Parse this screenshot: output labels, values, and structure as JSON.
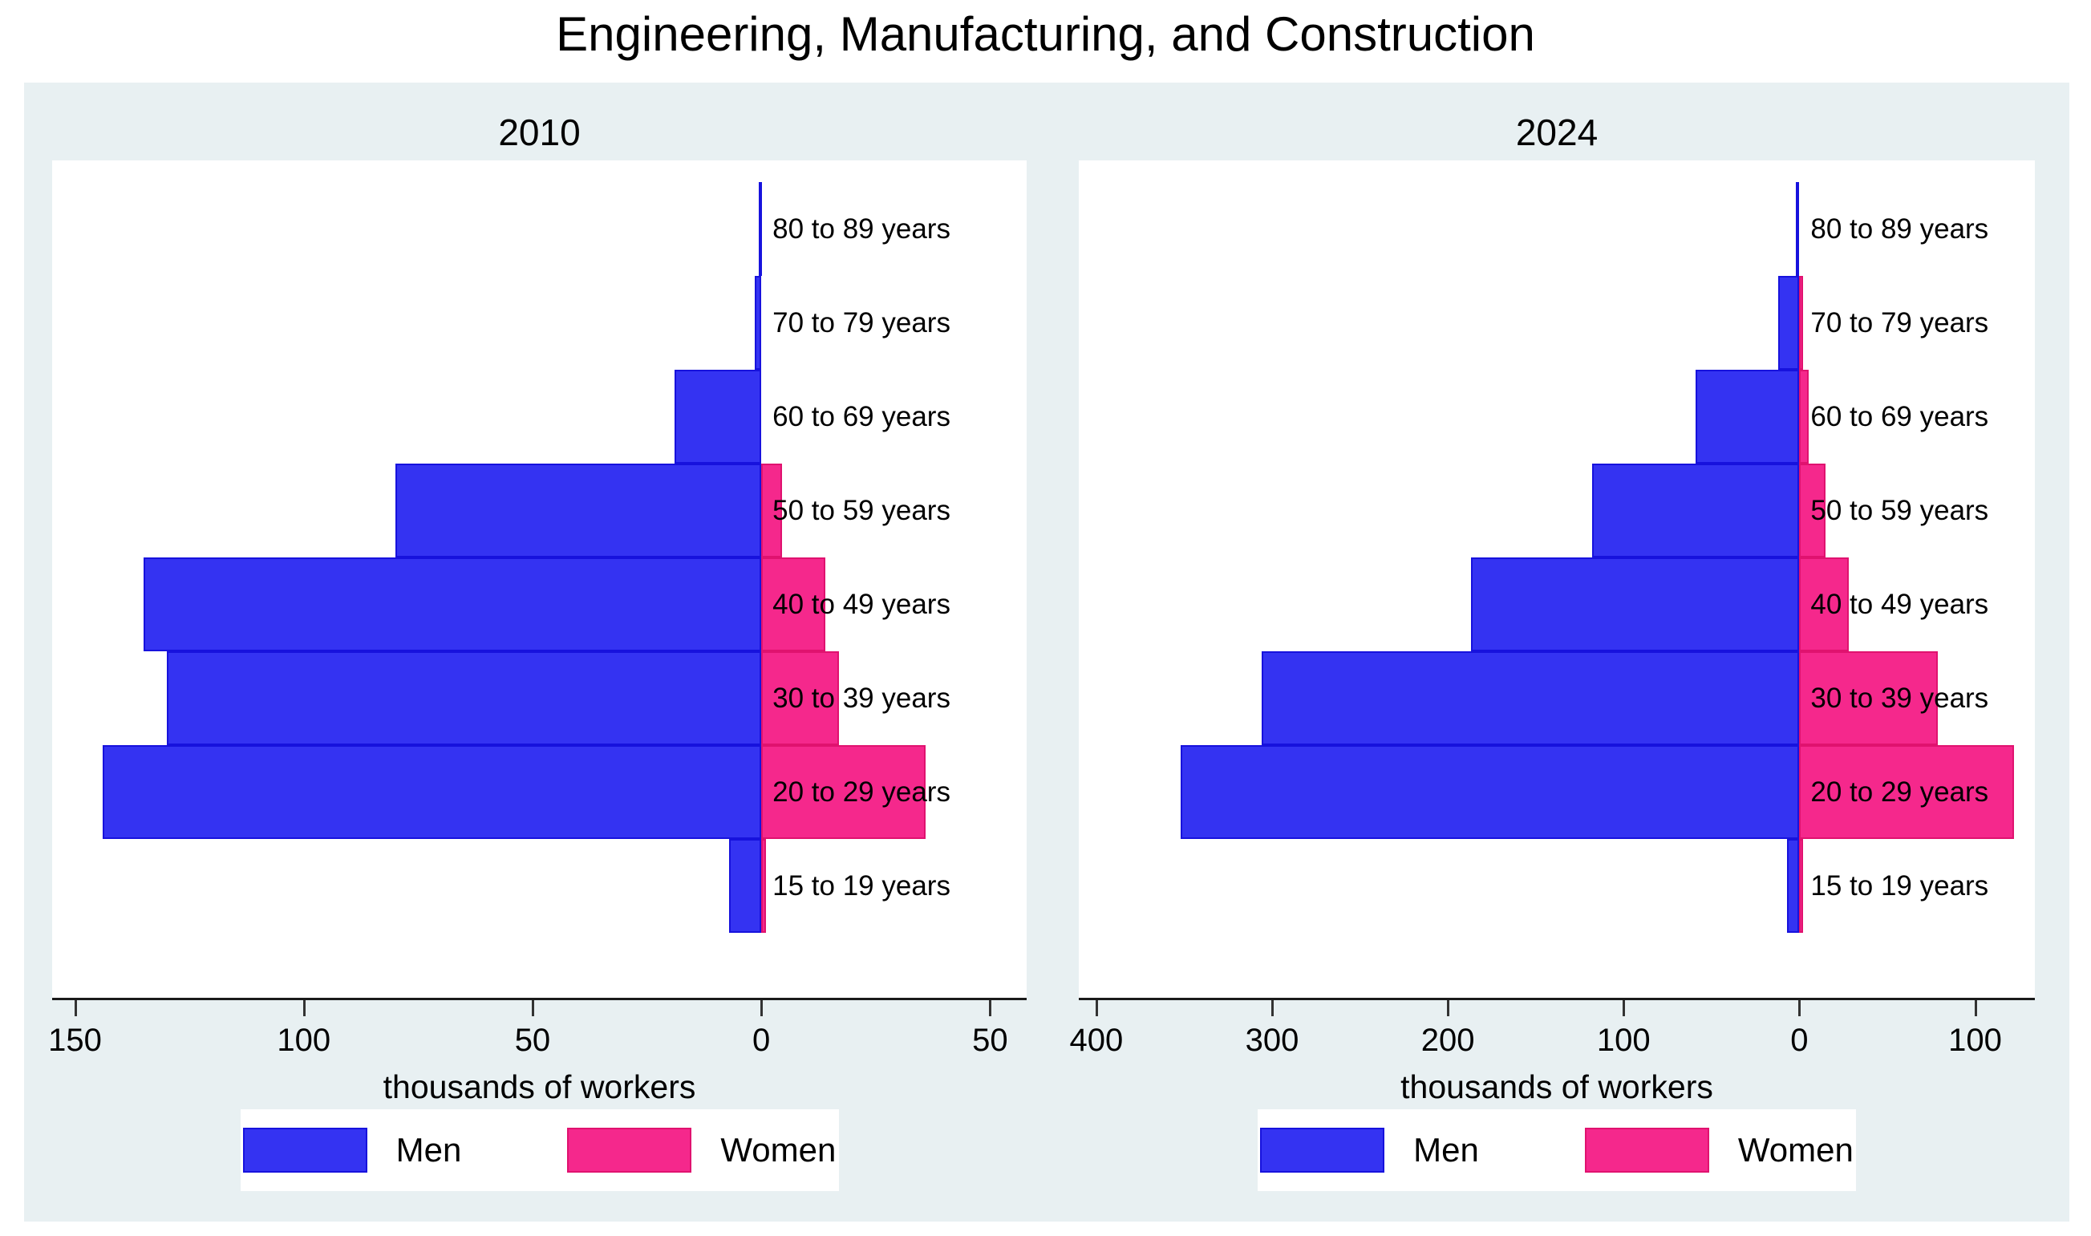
{
  "title": "Engineering, Manufacturing, and Construction",
  "colors": {
    "men_fill": "#3433f2",
    "men_border": "#1712dd",
    "women_fill": "#f5288c",
    "women_border": "#e0126f",
    "panel_background": "#e8f0f2",
    "plot_background": "#ffffff",
    "axis_line": "#1a1a1a"
  },
  "chart_data": [
    {
      "type": "bar",
      "subtype": "population-pyramid",
      "title": "2010",
      "xlabel": "thousands of workers",
      "legend_position": "bottom-center",
      "grid": false,
      "age_groups": [
        "15 to 19 years",
        "20 to 29 years",
        "30 to 39 years",
        "40 to 49 years",
        "50 to 59 years",
        "60 to 69 years",
        "70 to 79 years",
        "80 to 89 years"
      ],
      "series": [
        {
          "name": "Men",
          "side": "left",
          "values": [
            7,
            144,
            130,
            135,
            80,
            19,
            1.5,
            0.5
          ]
        },
        {
          "name": "Women",
          "side": "right",
          "values": [
            1,
            36,
            17,
            14,
            4.5,
            0,
            0,
            0
          ]
        }
      ],
      "xlim_men": 155,
      "xlim_women": 58,
      "xticks_men": [
        150,
        100,
        50,
        0
      ],
      "xticks_women": [
        50
      ]
    },
    {
      "type": "bar",
      "subtype": "population-pyramid",
      "title": "2024",
      "xlabel": "thousands of workers",
      "legend_position": "bottom-center",
      "grid": false,
      "age_groups": [
        "15 to 19 years",
        "20 to 29 years",
        "30 to 39 years",
        "40 to 49 years",
        "50 to 59 years",
        "60 to 69 years",
        "70 to 79 years",
        "80 to 89 years"
      ],
      "series": [
        {
          "name": "Men",
          "side": "left",
          "values": [
            7,
            352,
            306,
            187,
            118,
            59,
            12,
            2
          ]
        },
        {
          "name": "Women",
          "side": "right",
          "values": [
            2,
            122,
            79,
            28,
            15,
            5.5,
            2,
            0
          ]
        }
      ],
      "xlim_men": 410,
      "xlim_women": 134,
      "xticks_men": [
        400,
        300,
        200,
        100,
        0
      ],
      "xticks_women": [
        100
      ]
    }
  ]
}
